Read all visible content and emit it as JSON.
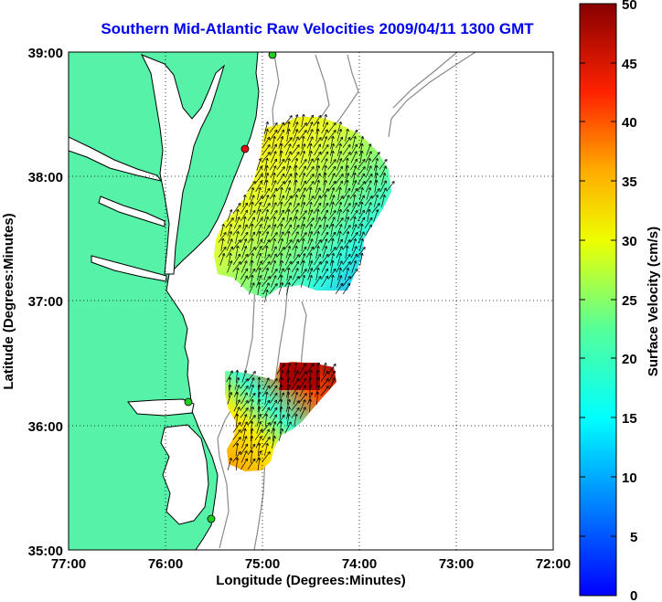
{
  "title": "Southern Mid-Atlantic Raw Velocities 2009/04/11 1300 GMT",
  "map": {
    "xlabel": "Longitude (Degrees:Minutes)",
    "ylabel": "Latitude (Degrees:Minutes)",
    "xticks": [
      "77:00",
      "76:00",
      "75:00",
      "74:00",
      "73:00",
      "72:00"
    ],
    "yticks": [
      "39:00",
      "38:00",
      "37:00",
      "36:00",
      "35:00"
    ],
    "lon_range": [
      -77,
      -72
    ],
    "lat_range": [
      35,
      39
    ],
    "grid": "dotted",
    "land_color": "#55f2a8",
    "water_color": "#ffffff",
    "isobath_color": "#8a8a8a",
    "site_marker_color": "#22cc22",
    "active_site_color": "#dd1111"
  },
  "colorbar": {
    "label": "Surface Velocity (cm/s)",
    "ticks": [
      "50",
      "45",
      "40",
      "35",
      "30",
      "25",
      "20",
      "15",
      "10",
      "5",
      "0"
    ],
    "range": [
      0,
      50
    ],
    "colormap": "jet"
  },
  "chart_data": {
    "type": "heatmap",
    "title": "Southern Mid-Atlantic Raw Velocities 2009/04/11 1300 GMT",
    "xlabel": "Longitude (Degrees:Minutes)",
    "ylabel": "Latitude (Degrees:Minutes)",
    "variable": "Surface Velocity (cm/s)",
    "scale_range": [
      0,
      50
    ],
    "regions": [
      {
        "name": "",
        "lon_range": [
          -75.6,
          -73.7
        ],
        "lat_range": [
          37.0,
          38.6
        ],
        "speed_range_cm_s": [
          8,
          32
        ]
      },
      {
        "name": "",
        "lon_range": [
          -75.4,
          -74.2
        ],
        "lat_range": [
          35.6,
          36.6
        ],
        "speed_range_cm_s": [
          12,
          50
        ]
      }
    ]
  }
}
